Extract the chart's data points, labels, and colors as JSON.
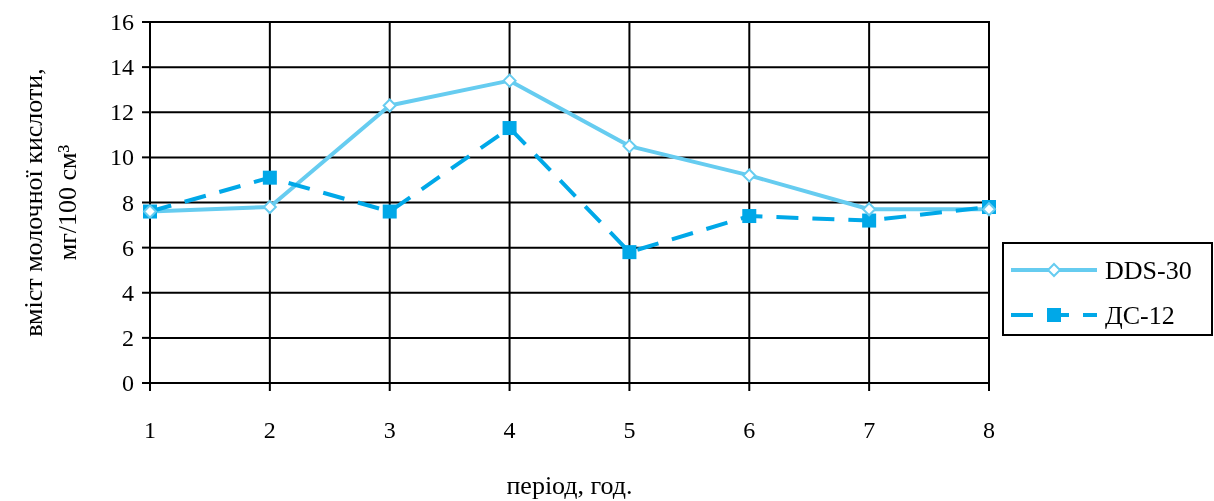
{
  "chart_data": {
    "type": "line",
    "xlabel": "період, год.",
    "ylabel": "вміст молочної кислоти, мг/100 см³",
    "x": [
      1,
      2,
      3,
      4,
      5,
      6,
      7,
      8
    ],
    "xlim": [
      1,
      8
    ],
    "xticks": [
      1,
      2,
      3,
      4,
      5,
      6,
      7,
      8
    ],
    "ylim": [
      0,
      16
    ],
    "yticks": [
      0,
      2,
      4,
      6,
      8,
      10,
      12,
      14,
      16
    ],
    "grid": true,
    "legend": "right",
    "series": [
      {
        "name": "DDS-30",
        "color": "#66ccf0",
        "marker": "diamond",
        "line_style": "solid",
        "values": [
          7.6,
          7.8,
          12.3,
          13.4,
          10.5,
          9.2,
          7.7,
          7.7
        ]
      },
      {
        "name": "ДС-12",
        "color": "#00a8e8",
        "marker": "square",
        "line_style": "dashed",
        "values": [
          7.6,
          9.1,
          7.6,
          11.3,
          5.8,
          7.4,
          7.2,
          7.8
        ]
      }
    ]
  }
}
